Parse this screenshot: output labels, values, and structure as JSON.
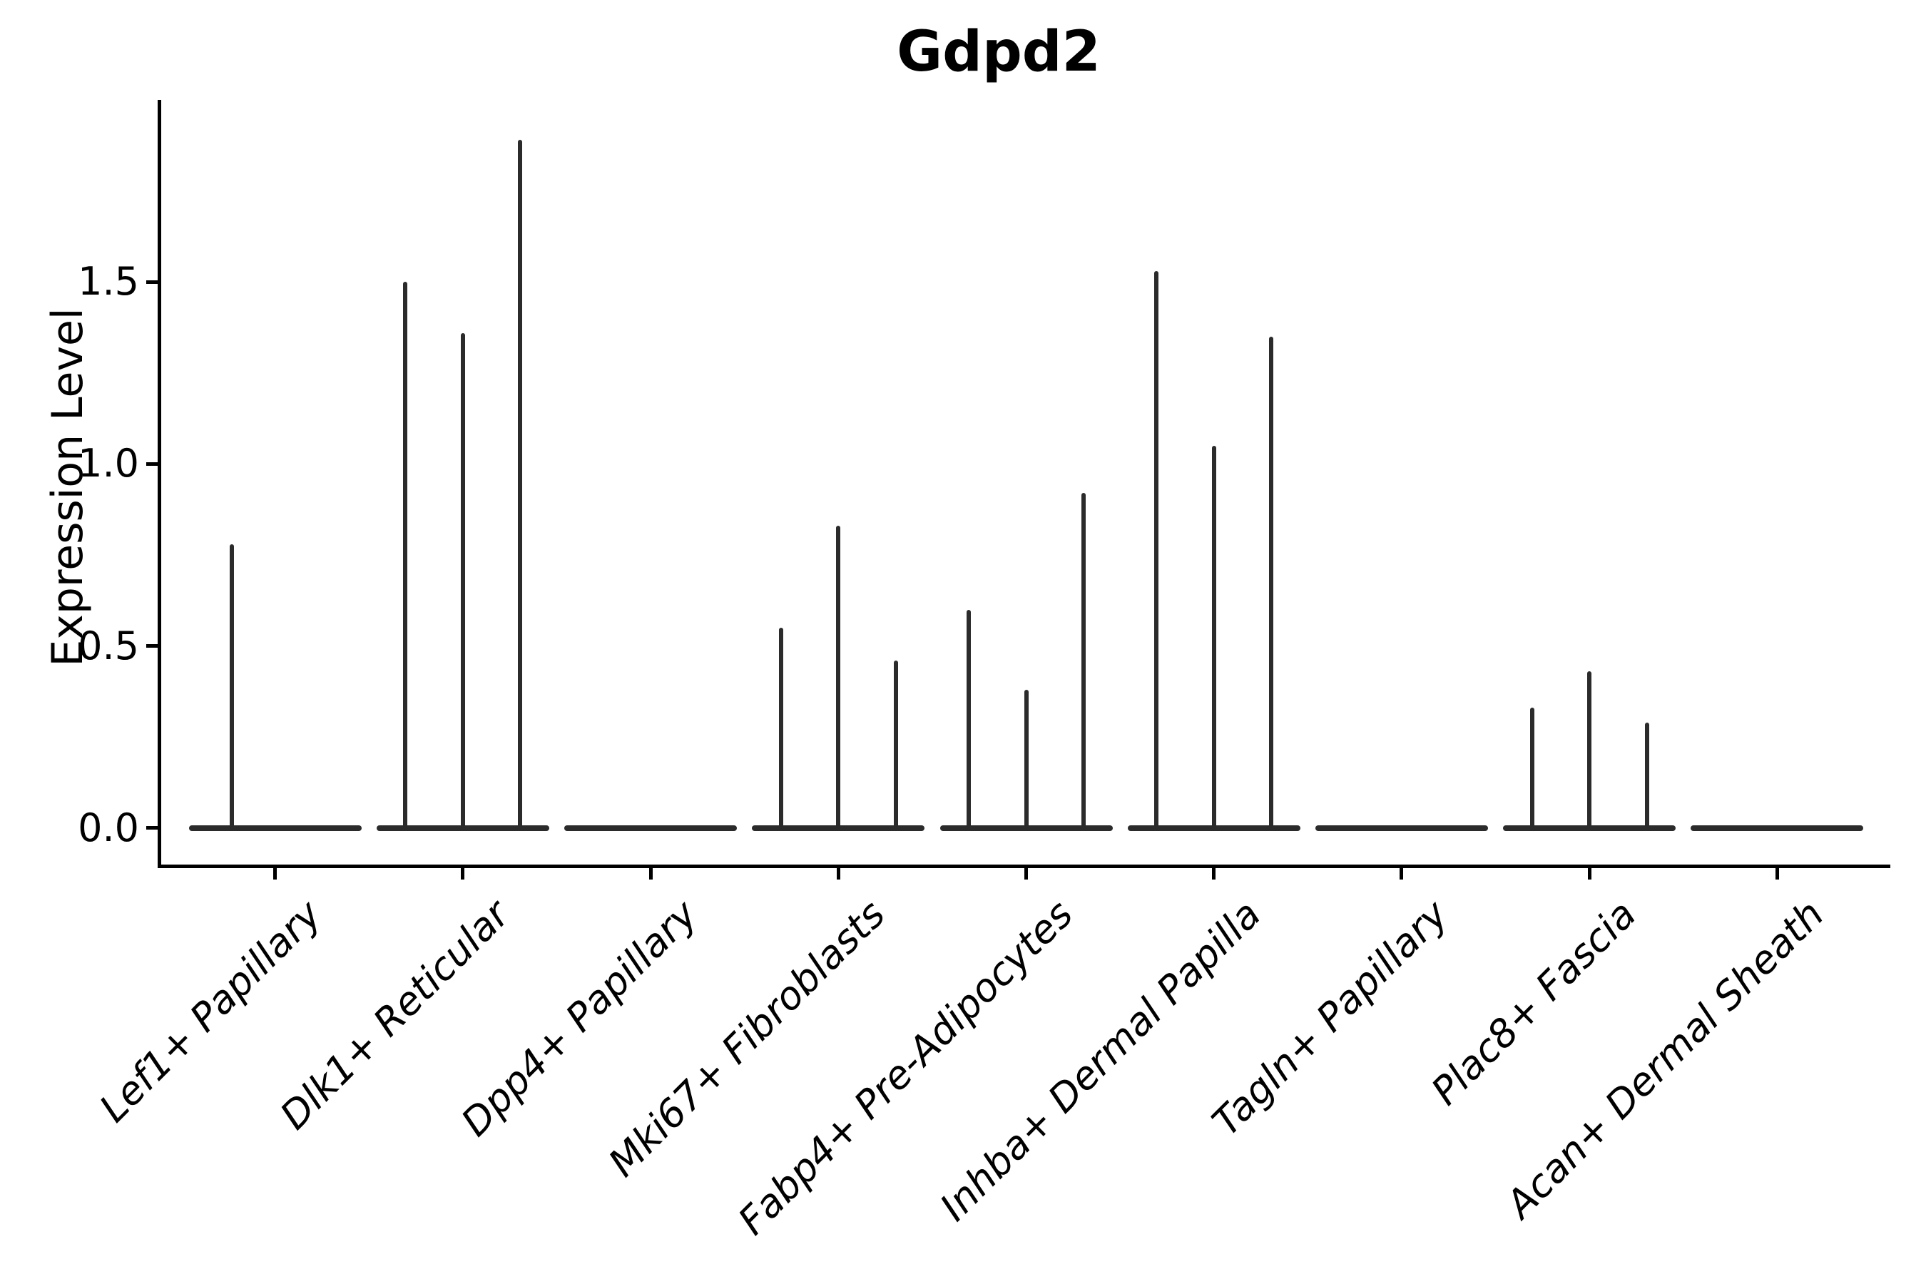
{
  "title": "Gdpd2",
  "chart_data": {
    "type": "violin",
    "title": "Gdpd2",
    "ylabel": "Expression Level",
    "xlabel": "",
    "ylim": [
      -0.1,
      2.0
    ],
    "grid": false,
    "legend": "none",
    "line_color": "#2b2b2b",
    "yticks": [
      {
        "label": "0.0",
        "value": 0.0
      },
      {
        "label": "0.5",
        "value": 0.5
      },
      {
        "label": "1.0",
        "value": 1.0
      },
      {
        "label": "1.5",
        "value": 1.5
      }
    ],
    "categories": [
      {
        "label": "Lef1+ Papillary",
        "violins": [
          {
            "pos": 0.25,
            "max": 0.78
          }
        ]
      },
      {
        "label": "Dlk1+ Reticular",
        "violins": [
          {
            "pos": 0.167,
            "max": 1.5
          },
          {
            "pos": 0.5,
            "max": 1.36
          },
          {
            "pos": 0.833,
            "max": 1.89
          }
        ]
      },
      {
        "label": "Dpp4+ Papillary",
        "violins": []
      },
      {
        "label": "Mki67+ Fibroblasts",
        "violins": [
          {
            "pos": 0.167,
            "max": 0.55
          },
          {
            "pos": 0.5,
            "max": 0.83
          },
          {
            "pos": 0.833,
            "max": 0.46
          }
        ]
      },
      {
        "label": "Fabp4+ Pre-Adipocytes",
        "violins": [
          {
            "pos": 0.167,
            "max": 0.6
          },
          {
            "pos": 0.5,
            "max": 0.38
          },
          {
            "pos": 0.833,
            "max": 0.92
          }
        ]
      },
      {
        "label": "Inhba+ Dermal Papilla",
        "violins": [
          {
            "pos": 0.167,
            "max": 1.53
          },
          {
            "pos": 0.5,
            "max": 1.05
          },
          {
            "pos": 0.833,
            "max": 1.35
          }
        ]
      },
      {
        "label": "Tagln+ Papillary",
        "violins": []
      },
      {
        "label": "Plac8+ Fascia",
        "violins": [
          {
            "pos": 0.167,
            "max": 0.33
          },
          {
            "pos": 0.5,
            "max": 0.43
          },
          {
            "pos": 0.833,
            "max": 0.29
          }
        ]
      },
      {
        "label": "Acan+ Dermal Sheath",
        "violins": []
      }
    ]
  }
}
